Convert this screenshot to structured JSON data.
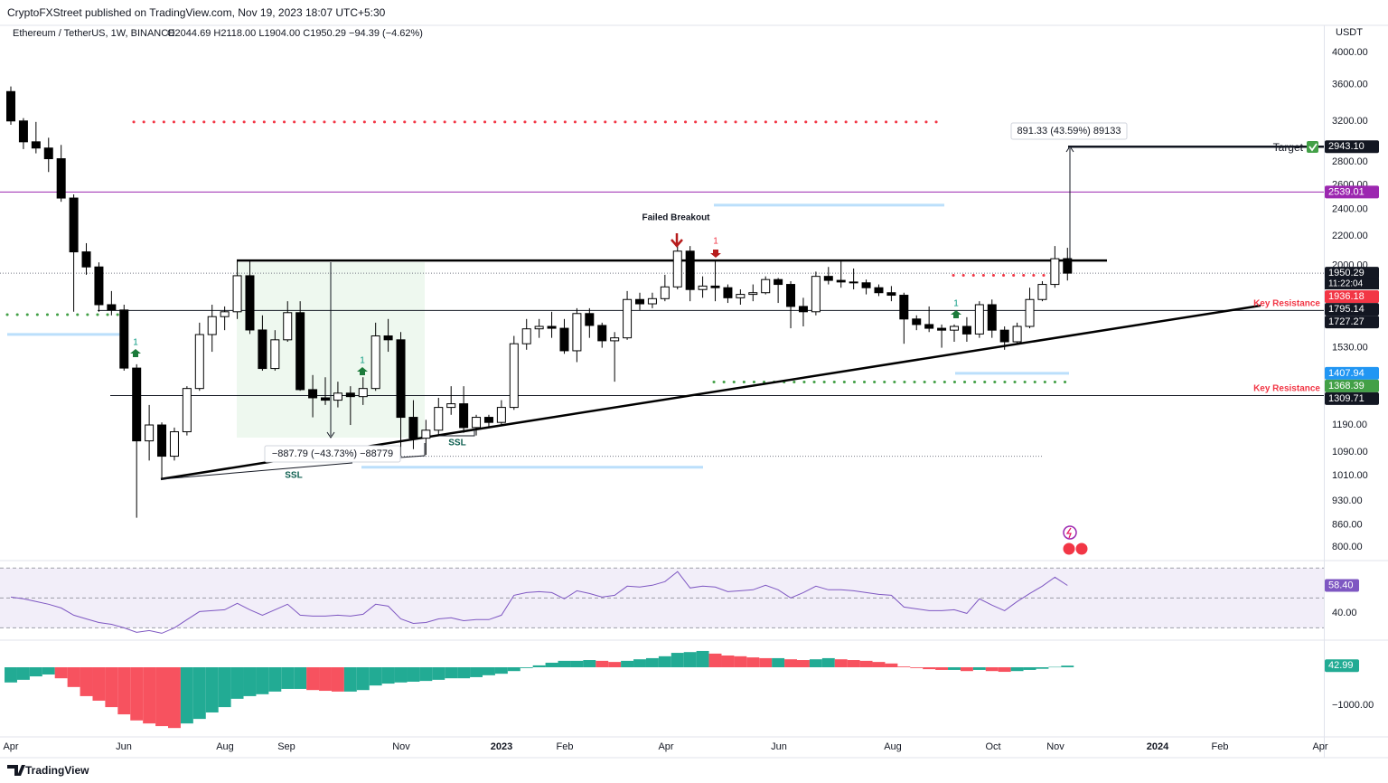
{
  "header": {
    "publisher": "CryptoFXStreet published on TradingView.com, Nov 19, 2023 18:07 UTC+5:30",
    "currency": "USDT",
    "footer": "TradingView"
  },
  "chart_data": {
    "type": "candlestick",
    "symbol": "Ethereum / TetherUS, 1W, BINANCE",
    "ohlc_text": "O2044.69  H2118.00  L1904.00  C1950.29  −94.39 (−4.62%)",
    "log_scale": true,
    "up_color": "#ffffff",
    "down_color": "#000000",
    "border_color": "#000000",
    "ylim": [
      770,
      4368
    ],
    "yticks": [
      {
        "value": 4000,
        "label": "4000.00"
      },
      {
        "value": 3600,
        "label": "3600.00"
      },
      {
        "value": 3200,
        "label": "3200.00"
      },
      {
        "value": 2800,
        "label": "2800.00"
      },
      {
        "value": 2600,
        "label": "2600.00"
      },
      {
        "value": 2400,
        "label": "2400.00"
      },
      {
        "value": 2200,
        "label": "2200.00"
      },
      {
        "value": 2000,
        "label": "2000.00"
      },
      {
        "value": 1530,
        "label": "1530.00"
      },
      {
        "value": 1190,
        "label": "1190.00"
      },
      {
        "value": 1090,
        "label": "1090.00"
      },
      {
        "value": 1010,
        "label": "1010.00"
      },
      {
        "value": 930,
        "label": "930.00"
      },
      {
        "value": 860,
        "label": "860.00"
      },
      {
        "value": 800,
        "label": "800.00"
      }
    ],
    "x_labels": [
      "Apr",
      "Jun",
      "Aug",
      "Sep",
      "Nov",
      "2023",
      "Feb",
      "Apr",
      "Jun",
      "Aug",
      "Oct",
      "Nov",
      "2024",
      "Feb",
      "Apr"
    ],
    "open": [
      3521,
      3200,
      2990,
      2930,
      2830,
      2490,
      2090,
      1990,
      1760,
      1730,
      1432,
      1130,
      1190,
      1075,
      1164,
      1340,
      1597,
      1693,
      1720,
      1934,
      1621,
      1430,
      1570,
      1715,
      1335,
      1300,
      1290,
      1320,
      1305,
      1340,
      1590,
      1570,
      1220,
      1140,
      1170,
      1260,
      1275,
      1180,
      1220,
      1200,
      1260,
      1550,
      1627,
      1640,
      1630,
      1515,
      1710,
      1645,
      1565,
      1580,
      1790,
      1765,
      1795,
      1865,
      2095,
      1849,
      1870,
      1860,
      1800,
      1820,
      1830,
      1910,
      1880,
      1750,
      1720,
      1930,
      1905,
      1895,
      1890,
      1860,
      1830,
      1815,
      1680,
      1650,
      1630,
      1620,
      1640,
      1600,
      1760,
      1620,
      1560,
      1640,
      1790,
      1880,
      2044.69
    ],
    "high": [
      3580,
      3230,
      3190,
      3030,
      2960,
      2520,
      2150,
      2020,
      1840,
      1760,
      1450,
      1270,
      1200,
      1180,
      1350,
      1660,
      1760,
      1750,
      2030,
      2030,
      1700,
      1620,
      1780,
      1780,
      1400,
      1390,
      1370,
      1350,
      1390,
      1660,
      1680,
      1610,
      1290,
      1210,
      1300,
      1350,
      1350,
      1230,
      1230,
      1290,
      1590,
      1680,
      1680,
      1720,
      1680,
      1740,
      1740,
      1660,
      1610,
      1840,
      1830,
      1830,
      1940,
      2140,
      2130,
      1930,
      2030,
      1880,
      1850,
      1880,
      1930,
      1920,
      1900,
      1800,
      1960,
      1990,
      2030,
      1980,
      1910,
      1880,
      1870,
      1830,
      1700,
      1750,
      1650,
      1650,
      1690,
      1780,
      1790,
      1640,
      1660,
      1860,
      1900,
      2130,
      2118
    ],
    "low": [
      3160,
      2920,
      2880,
      2710,
      2460,
      1720,
      1940,
      1720,
      1700,
      1420,
      880,
      1060,
      1000,
      1060,
      1150,
      1330,
      1510,
      1620,
      1680,
      1600,
      1420,
      1420,
      1560,
      1330,
      1220,
      1270,
      1260,
      1190,
      1270,
      1330,
      1510,
      1075,
      1100,
      1080,
      1150,
      1230,
      1160,
      1150,
      1180,
      1190,
      1250,
      1520,
      1580,
      1580,
      1500,
      1460,
      1580,
      1530,
      1370,
      1570,
      1730,
      1740,
      1780,
      1850,
      1780,
      1800,
      1780,
      1770,
      1760,
      1780,
      1820,
      1770,
      1630,
      1640,
      1700,
      1880,
      1860,
      1850,
      1820,
      1810,
      1780,
      1550,
      1620,
      1610,
      1530,
      1560,
      1560,
      1580,
      1580,
      1520,
      1550,
      1630,
      1780,
      1860,
      1904
    ],
    "close": [
      3200,
      2990,
      2930,
      2830,
      2490,
      2090,
      1990,
      1760,
      1730,
      1432,
      1130,
      1190,
      1075,
      1164,
      1340,
      1597,
      1693,
      1720,
      1934,
      1621,
      1430,
      1570,
      1715,
      1335,
      1300,
      1290,
      1320,
      1305,
      1340,
      1590,
      1570,
      1220,
      1140,
      1170,
      1260,
      1275,
      1180,
      1220,
      1200,
      1260,
      1550,
      1627,
      1640,
      1630,
      1515,
      1710,
      1645,
      1565,
      1580,
      1790,
      1765,
      1795,
      1865,
      2095,
      1849,
      1870,
      1860,
      1800,
      1820,
      1830,
      1910,
      1880,
      1750,
      1720,
      1930,
      1905,
      1895,
      1890,
      1860,
      1830,
      1815,
      1680,
      1650,
      1630,
      1620,
      1640,
      1600,
      1760,
      1620,
      1560,
      1640,
      1790,
      1880,
      2044,
      1950.29
    ],
    "price_labels": [
      {
        "value": 2943.1,
        "label": "2943.10",
        "color": "#131722",
        "line": "thick"
      },
      {
        "value": 2539.01,
        "label": "2539.01",
        "color": "#9c27b0",
        "line": "line"
      },
      {
        "value": 1950.29,
        "label": "1950.29",
        "color": "#131722",
        "line": "dotted",
        "countdown": "11:22:04"
      },
      {
        "value": 1936.18,
        "label": "1936.18",
        "color": "#f23645",
        "line": "dots"
      },
      {
        "value": 1795.14,
        "label": "1795.14",
        "color": "#131722",
        "line": "none"
      },
      {
        "value": 1727.27,
        "label": "1727.27",
        "color": "#131722",
        "line": "line"
      },
      {
        "value": 1407.94,
        "label": "1407.94",
        "color": "#2196f3",
        "line": "band"
      },
      {
        "value": 1368.39,
        "label": "1368.39",
        "color": "#43a047",
        "line": "dots"
      },
      {
        "value": 1309.71,
        "label": "1309.71",
        "color": "#131722",
        "line": "line"
      }
    ],
    "levels": [
      {
        "value": 3190,
        "color": "#f23645",
        "style": "dots"
      },
      {
        "value": 1704,
        "color": "#43a047",
        "style": "dots"
      },
      {
        "value": 1598,
        "color": "#2196f3",
        "style": "band"
      },
      {
        "value": 2433,
        "color": "#2196f3",
        "style": "band"
      },
      {
        "value": 1037,
        "color": "#2196f3",
        "style": "band"
      },
      {
        "value": 2032,
        "color": "#000000",
        "style": "thick"
      },
      {
        "value": 1075,
        "color": "#787b86",
        "style": "dotted"
      }
    ],
    "trendline": [
      998,
      1755
    ],
    "annotations": {
      "failed_breakout": "Failed Breakout",
      "target": "Target",
      "key_resistance_1": "Key Resistance",
      "key_resistance_2": "Key Resistance",
      "measure_up": "891.33 (43.59%) 89133",
      "measure_down": "−887.79 (−43.73%) −88779",
      "ssl_1": "SSL",
      "ssl_2": "SSL",
      "signals": [
        "1",
        "1",
        "1",
        "1"
      ]
    },
    "rsi": {
      "color": "#7e57c2",
      "ylim": [
        23,
        75
      ],
      "bands": [
        70,
        50,
        30
      ],
      "yticks": [
        {
          "value": 40,
          "label": "40.00"
        }
      ],
      "last_label": {
        "value": 58.4,
        "label": "58.40"
      },
      "values": [
        50.6,
        49.4,
        47.6,
        45.8,
        43.3,
        38.5,
        36,
        33.6,
        32.4,
        30,
        27,
        28.2,
        26.4,
        30,
        35.5,
        40.9,
        41.5,
        42.1,
        46.4,
        42.1,
        38.5,
        42.1,
        45.8,
        38.5,
        37.9,
        37.9,
        38.5,
        37.9,
        39.1,
        45.8,
        44.5,
        36,
        33,
        33.6,
        36,
        36.7,
        34.8,
        35.5,
        35.5,
        38.5,
        51.8,
        53.6,
        54.2,
        53.6,
        49.4,
        54.8,
        53,
        50.6,
        51.8,
        57.9,
        57.3,
        58.5,
        60.9,
        67.6,
        56.7,
        57.9,
        57.3,
        54.2,
        54.8,
        55.5,
        58.5,
        55.5,
        50,
        53.6,
        57.9,
        55.5,
        55.5,
        54.8,
        53.6,
        52.4,
        51.8,
        43.9,
        42.7,
        41.5,
        41.5,
        42.1,
        39.7,
        49.4,
        45.2,
        41.5,
        47.6,
        53,
        57.9,
        63.9,
        58.4
      ]
    },
    "histogram": {
      "rise_color": "#22ab94",
      "fall_color": "#f7525f",
      "ylim": [
        -1786,
        667
      ],
      "yticks": [
        {
          "value": -1000,
          "label": "−1000.00"
        }
      ],
      "last_label": {
        "value": 42.99,
        "label": "42.99"
      },
      "values": [
        -400,
        -330,
        -240,
        -190,
        -290,
        -520,
        -760,
        -880,
        -1050,
        -1240,
        -1400,
        -1480,
        -1550,
        -1600,
        -1480,
        -1360,
        -1190,
        -1050,
        -830,
        -760,
        -710,
        -640,
        -570,
        -570,
        -600,
        -620,
        -640,
        -640,
        -600,
        -480,
        -430,
        -400,
        -380,
        -360,
        -330,
        -290,
        -290,
        -260,
        -210,
        -170,
        -100,
        -20,
        50,
        120,
        170,
        170,
        190,
        170,
        140,
        170,
        210,
        240,
        290,
        380,
        400,
        430,
        360,
        310,
        290,
        260,
        240,
        240,
        210,
        190,
        210,
        240,
        210,
        190,
        170,
        140,
        100,
        20,
        -20,
        -50,
        -70,
        -70,
        -100,
        -70,
        -100,
        -120,
        -100,
        -70,
        -40,
        10,
        42.99
      ]
    }
  }
}
